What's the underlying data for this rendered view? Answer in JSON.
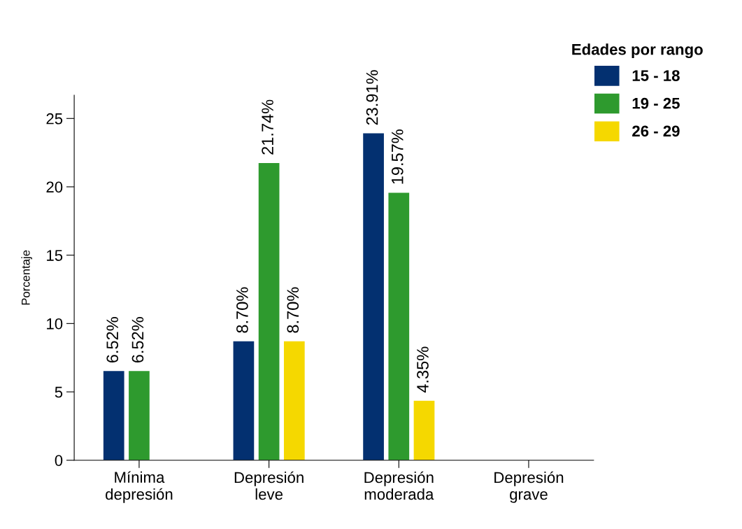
{
  "chart_data": {
    "type": "bar",
    "ylabel": "Porcentaje",
    "legend_title": "Edades por rango",
    "categories": [
      "Mínima\ndepresión",
      "Depresión\nleve",
      "Depresión\nmoderada",
      "Depresión\ngrave"
    ],
    "series": [
      {
        "name": "15 - 18",
        "color": "#033070",
        "values": [
          6.52,
          8.7,
          23.91,
          null
        ],
        "value_labels": [
          "6.52%",
          "8.70%",
          "23.91%",
          null
        ]
      },
      {
        "name": "19 - 25",
        "color": "#2e9a2e",
        "values": [
          6.52,
          21.74,
          19.57,
          null
        ],
        "value_labels": [
          "6.52%",
          "21.74%",
          "19.57%",
          null
        ]
      },
      {
        "name": "26 - 29",
        "color": "#f5d800",
        "values": [
          null,
          8.7,
          4.35,
          null
        ],
        "value_labels": [
          null,
          "8.70%",
          "4.35%",
          null
        ]
      }
    ],
    "ylim": [
      0,
      26.7
    ],
    "yticks": [
      0,
      5,
      10,
      15,
      20,
      25
    ],
    "grid": false,
    "legend": "top right"
  }
}
